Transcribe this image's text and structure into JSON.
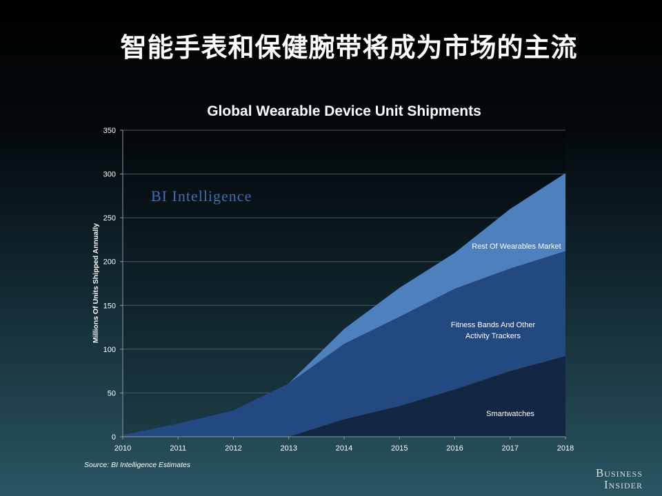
{
  "slide": {
    "title": "智能手表和保健腕带将成为市场的主流"
  },
  "chart_data": {
    "type": "area",
    "stacked": true,
    "title": "Global Wearable Device Unit Shipments",
    "xlabel": "",
    "ylabel": "Millions Of Units Shipped Annually",
    "categories": [
      "2010",
      "2011",
      "2012",
      "2013",
      "2014",
      "2015",
      "2016",
      "2017",
      "2018"
    ],
    "ylim": [
      0,
      350
    ],
    "yticks": [
      0,
      50,
      100,
      150,
      200,
      250,
      300,
      350
    ],
    "grid": true,
    "series": [
      {
        "name": "Smartwatches",
        "values": [
          0,
          0,
          0,
          0,
          20,
          35,
          54,
          75,
          92
        ],
        "color": "#132644"
      },
      {
        "name": "Fitness Bands And Other Activity Trackers",
        "values": [
          2,
          15,
          30,
          61,
          86,
          102,
          115,
          117,
          120
        ],
        "color": "#234a80"
      },
      {
        "name": "Rest Of Wearables Market",
        "values": [
          0,
          0,
          0,
          0,
          17,
          33,
          41,
          68,
          89
        ],
        "color": "#4d80bd"
      }
    ]
  },
  "watermark": "BI Intelligence",
  "source": "Source: BI Intelligence Estimates",
  "brand": {
    "line1": "Business",
    "line2": "Insider"
  }
}
